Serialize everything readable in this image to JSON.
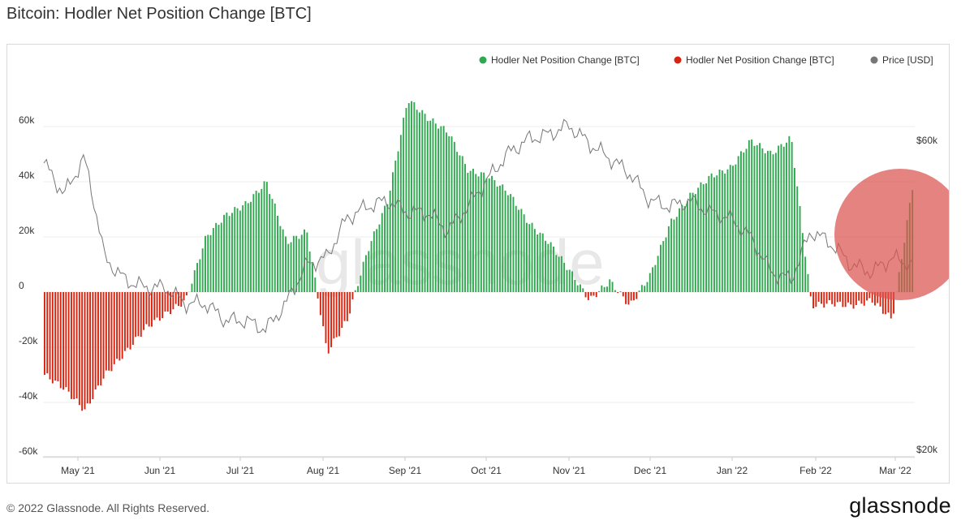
{
  "header": {
    "title": "Bitcoin: Hodler Net Position Change [BTC]"
  },
  "footer": {
    "copyright": "© 2022 Glassnode. All Rights Reserved.",
    "logo": "glassnode"
  },
  "watermark": "glassnode",
  "colors": {
    "positive": "#2fa84f",
    "negative": "#d9230f",
    "price": "#777777",
    "highlight": "#d9534f"
  },
  "chart_data": {
    "type": "bar",
    "title": "Bitcoin: Hodler Net Position Change [BTC]",
    "legend": {
      "placement": "top-right",
      "items": [
        {
          "label": "Hodler Net Position Change [BTC]",
          "color": "#2fa84f"
        },
        {
          "label": "Hodler Net Position Change [BTC]",
          "color": "#d9230f"
        },
        {
          "label": "Price [USD]",
          "color": "#777777"
        }
      ]
    },
    "x_ticks": [
      "May '21",
      "Jun '21",
      "Jul '21",
      "Aug '21",
      "Sep '21",
      "Oct '21",
      "Nov '21",
      "Dec '21",
      "Jan '22",
      "Feb '22",
      "Mar '22"
    ],
    "y_left": {
      "ticks": [
        "60k",
        "40k",
        "20k",
        "0",
        "-20k",
        "-40k",
        "-60k"
      ],
      "ylim": [
        -60000,
        70000
      ]
    },
    "y_right": {
      "ticks": [
        "$60k",
        "$20k"
      ],
      "scale": "log"
    },
    "grid": true,
    "series": [
      {
        "name": "Hodler Net Position Change [BTC]",
        "unit": "BTC",
        "x_range": [
          "2021-04-18",
          "2022-03-08"
        ],
        "weekly_values_k": [
          -30,
          -35,
          -43,
          -30,
          -22,
          -13,
          -8,
          -3,
          20,
          28,
          32,
          40,
          18,
          22,
          -22,
          -10,
          15,
          33,
          70,
          63,
          58,
          44,
          42,
          36,
          25,
          18,
          8,
          -3,
          4,
          -5,
          6,
          25,
          35,
          42,
          45,
          55,
          50,
          56,
          -5,
          -4,
          -5,
          -3,
          -10,
          38
        ]
      },
      {
        "name": "Price [USD]",
        "unit": "USD",
        "weekly_values_k": [
          56,
          50,
          57,
          40,
          37,
          36,
          36,
          34,
          34,
          32,
          32,
          31,
          34,
          39,
          40,
          46,
          48,
          49,
          47,
          47,
          44,
          48,
          53,
          58,
          61,
          62,
          64,
          60,
          57,
          54,
          49,
          48,
          49,
          47,
          46,
          43,
          38,
          37,
          44,
          42,
          39,
          38,
          40,
          39
        ]
      }
    ],
    "annotation": {
      "type": "circle",
      "note": "highlight"
    }
  }
}
